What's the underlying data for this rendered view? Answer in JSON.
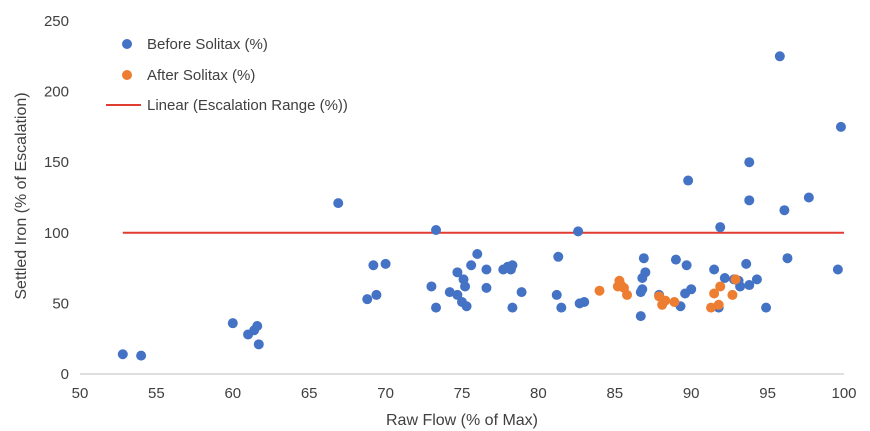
{
  "chart_data": {
    "type": "scatter",
    "xlabel": "Raw Flow (% of Max)",
    "ylabel": "Settled Iron (% of Escalation)",
    "xlim": [
      50,
      100
    ],
    "ylim": [
      0,
      250
    ],
    "x_ticks": [
      "50",
      "55",
      "60",
      "65",
      "70",
      "75",
      "80",
      "85",
      "90",
      "95",
      "100"
    ],
    "y_ticks": [
      "0",
      "50",
      "100",
      "150",
      "200",
      "250"
    ],
    "grid": false,
    "legend": {
      "position": "top-left",
      "entries": [
        {
          "label": "Before Solitax (%)",
          "marker": "circle",
          "color": "#4472C4"
        },
        {
          "label": "After Solitax (%)",
          "marker": "circle",
          "color": "#ED7D31"
        },
        {
          "label": "Linear (Escalation Range (%))",
          "marker": "line",
          "color": "#E03C31"
        }
      ]
    },
    "series": [
      {
        "name": "Before Solitax (%)",
        "color": "#4472C4",
        "points": [
          [
            52.8,
            14
          ],
          [
            54.0,
            13
          ],
          [
            60.0,
            36
          ],
          [
            61.0,
            28
          ],
          [
            61.4,
            31
          ],
          [
            61.6,
            34
          ],
          [
            61.7,
            21
          ],
          [
            66.9,
            121
          ],
          [
            68.8,
            53
          ],
          [
            69.2,
            77
          ],
          [
            69.4,
            56
          ],
          [
            70.0,
            78
          ],
          [
            73.0,
            62
          ],
          [
            73.3,
            102
          ],
          [
            73.3,
            47
          ],
          [
            74.2,
            58
          ],
          [
            74.7,
            56
          ],
          [
            74.7,
            72
          ],
          [
            75.0,
            51
          ],
          [
            75.1,
            67
          ],
          [
            75.2,
            62
          ],
          [
            75.3,
            48
          ],
          [
            75.6,
            77
          ],
          [
            76.0,
            85
          ],
          [
            76.6,
            74
          ],
          [
            76.6,
            61
          ],
          [
            77.7,
            74
          ],
          [
            78.0,
            76
          ],
          [
            78.2,
            74
          ],
          [
            78.3,
            47
          ],
          [
            78.3,
            77
          ],
          [
            78.9,
            58
          ],
          [
            81.2,
            56
          ],
          [
            81.3,
            83
          ],
          [
            81.5,
            47
          ],
          [
            82.6,
            101
          ],
          [
            82.7,
            50
          ],
          [
            83.0,
            51
          ],
          [
            86.7,
            41
          ],
          [
            86.7,
            58
          ],
          [
            86.8,
            68
          ],
          [
            86.8,
            60
          ],
          [
            86.9,
            82
          ],
          [
            87.0,
            72
          ],
          [
            87.9,
            56
          ],
          [
            89.0,
            81
          ],
          [
            89.3,
            48
          ],
          [
            89.6,
            57
          ],
          [
            89.7,
            77
          ],
          [
            89.8,
            137
          ],
          [
            90.0,
            60
          ],
          [
            91.5,
            74
          ],
          [
            91.8,
            47
          ],
          [
            91.9,
            104
          ],
          [
            92.2,
            68
          ],
          [
            92.8,
            67
          ],
          [
            93.1,
            66
          ],
          [
            93.2,
            62
          ],
          [
            93.6,
            78
          ],
          [
            93.8,
            150
          ],
          [
            93.8,
            123
          ],
          [
            93.8,
            63
          ],
          [
            94.3,
            67
          ],
          [
            94.9,
            47
          ],
          [
            95.8,
            225
          ],
          [
            96.1,
            116
          ],
          [
            96.3,
            82
          ],
          [
            97.7,
            125
          ],
          [
            99.6,
            74
          ],
          [
            99.8,
            175
          ]
        ]
      },
      {
        "name": "After Solitax (%)",
        "color": "#ED7D31",
        "points": [
          [
            84.0,
            59
          ],
          [
            85.2,
            62
          ],
          [
            85.3,
            66
          ],
          [
            85.4,
            63
          ],
          [
            85.6,
            61
          ],
          [
            85.8,
            56
          ],
          [
            87.9,
            55
          ],
          [
            88.1,
            49
          ],
          [
            88.3,
            52
          ],
          [
            88.9,
            51
          ],
          [
            91.3,
            47
          ],
          [
            91.5,
            57
          ],
          [
            91.8,
            49
          ],
          [
            91.9,
            62
          ],
          [
            92.7,
            56
          ],
          [
            92.9,
            67
          ]
        ]
      }
    ],
    "trendline": {
      "name": "Linear (Escalation Range (%))",
      "color": "#E03C31",
      "points": [
        [
          52.8,
          100
        ],
        [
          100,
          100
        ]
      ]
    }
  }
}
